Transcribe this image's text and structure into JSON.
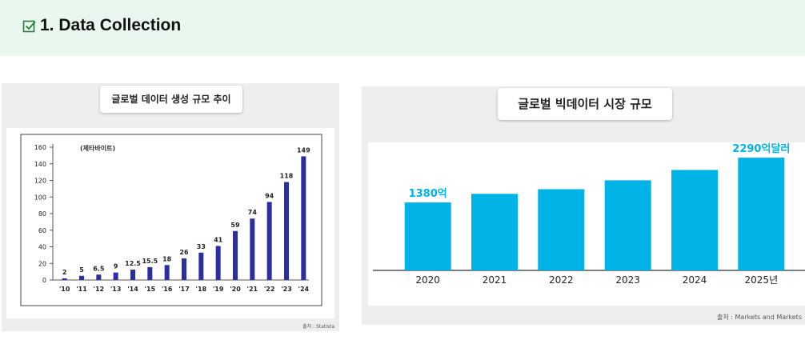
{
  "header": {
    "title": "1. Data Collection",
    "icon": "checkbox-icon",
    "background": "#eaf7ee"
  },
  "chart_data": [
    {
      "type": "bar",
      "title": "글로벌 데이터 생성 규모 추이",
      "unit_label": "(제타바이트)",
      "categories": [
        "'10",
        "'11",
        "'12",
        "'13",
        "'14",
        "'15",
        "'16",
        "'17",
        "'18",
        "'19",
        "'20",
        "'21",
        "'22",
        "'23",
        "'24"
      ],
      "values": [
        2,
        5,
        6.5,
        9,
        12.5,
        15.5,
        18,
        26,
        33,
        41,
        59,
        74,
        94,
        118,
        149
      ],
      "data_labels": [
        "2",
        "5",
        "6.5",
        "9",
        "12.5",
        "15.5",
        "18",
        "26",
        "33",
        "41",
        "59",
        "74",
        "94",
        "118",
        "149"
      ],
      "yticks": [
        "0",
        "20",
        "40",
        "60",
        "80",
        "100",
        "120",
        "140",
        "160"
      ],
      "ylim": [
        0,
        160
      ],
      "color": "#2b2ea3",
      "source": "출처 : Statista"
    },
    {
      "type": "bar",
      "title": "글로벌 빅데이터 시장 규모",
      "categories": [
        "2020",
        "2021",
        "2022",
        "2023",
        "2024",
        "2025년"
      ],
      "values": [
        1380,
        1555,
        1650,
        1830,
        2040,
        2290
      ],
      "annotations": [
        {
          "index": 0,
          "text": "1380억"
        },
        {
          "index": 5,
          "text": "2290억달러"
        }
      ],
      "ylim": [
        0,
        2600
      ],
      "color": "#00b3e6",
      "source": "출처 : Markets and Markets"
    }
  ]
}
